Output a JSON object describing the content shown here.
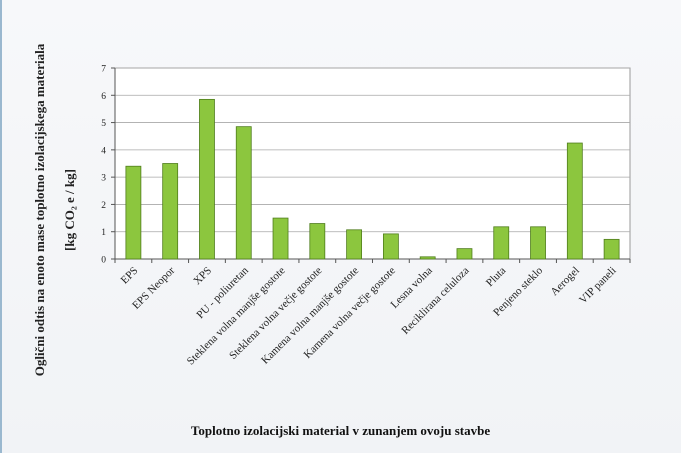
{
  "chart_data": {
    "type": "bar",
    "ylabel_line1": "Oglični odtis na enoto mase toplotno izolacijskega materiala",
    "ylabel_line2": "[kg CO₂ e / kg]",
    "xlabel": "Toplotno izolacijski material v zunanjem ovoju stavbe",
    "ylim": [
      0,
      7
    ],
    "yticks": [
      0,
      1,
      2,
      3,
      4,
      5,
      6,
      7
    ],
    "grid": true,
    "bar_color": "#8cc63e",
    "categories": [
      "EPS",
      "EPS Neopor",
      "XPS",
      "PU - poliuretan",
      "Steklena volna manjše gostote",
      "Steklena volna večje gostote",
      "Kamena volna manjše gostote",
      "Kamena volna večje gostote",
      "Lesna volna",
      "Reciklirana celuloza",
      "Pluta",
      "Penjeno steklo",
      "Aerogel",
      "VIP paneli"
    ],
    "values": [
      3.4,
      3.5,
      5.85,
      4.85,
      1.5,
      1.3,
      1.07,
      0.92,
      0.08,
      0.38,
      1.18,
      1.18,
      4.25,
      0.72
    ]
  }
}
